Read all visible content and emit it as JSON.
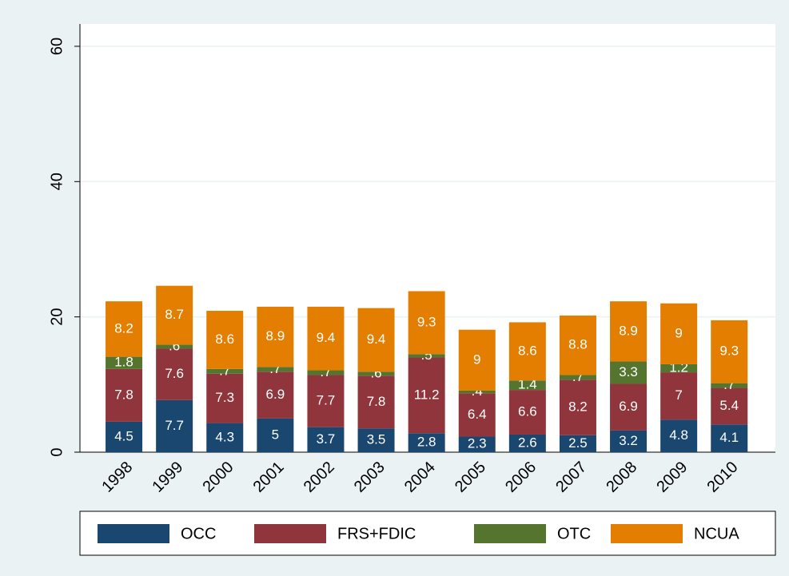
{
  "chart_data": {
    "type": "stacked_bar",
    "categories": [
      "1998",
      "1999",
      "2000",
      "2001",
      "2002",
      "2003",
      "2004",
      "2005",
      "2006",
      "2007",
      "2008",
      "2009",
      "2010"
    ],
    "series": [
      {
        "name": "OCC",
        "color": "#1a476f",
        "values": [
          4.5,
          7.7,
          4.3,
          5,
          3.7,
          3.5,
          2.8,
          2.3,
          2.6,
          2.5,
          3.2,
          4.8,
          4.1
        ]
      },
      {
        "name": "FRS+FDIC",
        "color": "#90353b",
        "values": [
          7.8,
          7.6,
          7.3,
          6.9,
          7.7,
          7.8,
          11.2,
          6.4,
          6.6,
          8.2,
          6.9,
          7,
          5.4
        ]
      },
      {
        "name": "OTC",
        "color": "#55752f",
        "values": [
          1.8,
          0.6,
          0.7,
          0.7,
          0.7,
          0.6,
          0.5,
          0.4,
          1.4,
          0.7,
          3.3,
          1.2,
          0.7
        ],
        "value_labels": [
          "1.8",
          ".6",
          ".7",
          ".7",
          ".7",
          ".6",
          ".5",
          ".4",
          "1.4",
          ".7",
          "3.3",
          "1.2",
          ".7"
        ]
      },
      {
        "name": "NCUA",
        "color": "#e37e00",
        "values": [
          8.2,
          8.7,
          8.6,
          8.9,
          9.4,
          9.4,
          9.3,
          9,
          8.6,
          8.8,
          8.9,
          9,
          9.3
        ]
      }
    ],
    "ylim": [
      0,
      63.3
    ],
    "yticks": [
      0,
      20,
      40,
      60
    ],
    "grid": true,
    "legend": "bottom"
  }
}
